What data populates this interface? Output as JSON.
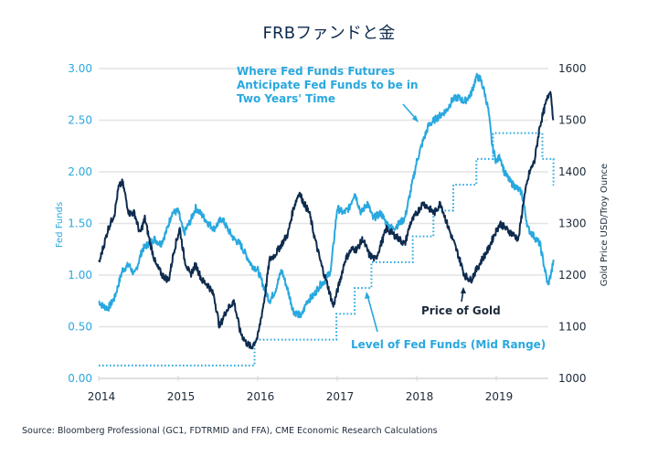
{
  "chart_data": {
    "type": "line",
    "title": "FRBファンドと金",
    "xlabel": "",
    "ylabel_left": "Fed Funds",
    "ylabel_right": "Gold Price USD/Troy Ounce",
    "x_range": [
      2014.0,
      2019.75
    ],
    "ylim_left": [
      0,
      3.0
    ],
    "ylim_right": [
      1000,
      1600
    ],
    "x_ticks": [
      "2014",
      "2015",
      "2016",
      "2017",
      "2018",
      "2019"
    ],
    "x_tick_values": [
      2014,
      2015,
      2016,
      2017,
      2018,
      2019
    ],
    "y_ticks_left": [
      "0.00",
      "0.50",
      "1.00",
      "1.50",
      "2.00",
      "2.50",
      "3.00"
    ],
    "y_tick_values_left": [
      0,
      0.5,
      1.0,
      1.5,
      2.0,
      2.5,
      3.0
    ],
    "y_ticks_right": [
      "1000",
      "1100",
      "1200",
      "1300",
      "1400",
      "1500",
      "1600"
    ],
    "y_tick_values_right": [
      1000,
      1100,
      1200,
      1300,
      1400,
      1500,
      1600
    ],
    "grid": true,
    "series": [
      {
        "name": "Where Fed Funds Futures Anticipate Fed Funds to be in Two Years' Time",
        "axis": "left",
        "style": "solid",
        "color": "#29a8df",
        "x": [
          2014.0,
          2014.05,
          2014.12,
          2014.2,
          2014.3,
          2014.38,
          2014.45,
          2014.55,
          2014.62,
          2014.7,
          2014.78,
          2014.85,
          2014.92,
          2015.0,
          2015.07,
          2015.15,
          2015.22,
          2015.3,
          2015.38,
          2015.45,
          2015.55,
          2015.62,
          2015.7,
          2015.78,
          2015.85,
          2015.92,
          2016.0,
          2016.07,
          2016.15,
          2016.22,
          2016.3,
          2016.38,
          2016.45,
          2016.55,
          2016.62,
          2016.7,
          2016.78,
          2016.85,
          2016.92,
          2017.0,
          2017.08,
          2017.15,
          2017.22,
          2017.3,
          2017.38,
          2017.45,
          2017.55,
          2017.62,
          2017.7,
          2017.78,
          2017.85,
          2017.92,
          2018.0,
          2018.08,
          2018.15,
          2018.22,
          2018.3,
          2018.38,
          2018.45,
          2018.52,
          2018.6,
          2018.68,
          2018.75,
          2018.8,
          2018.85,
          2018.9,
          2018.95,
          2019.0,
          2019.05,
          2019.1,
          2019.18,
          2019.25,
          2019.32,
          2019.4,
          2019.45,
          2019.5,
          2019.55,
          2019.6,
          2019.65,
          2019.7,
          2019.72
        ],
        "values": [
          0.75,
          0.7,
          0.68,
          0.78,
          1.05,
          1.1,
          1.0,
          1.25,
          1.3,
          1.35,
          1.3,
          1.42,
          1.6,
          1.62,
          1.4,
          1.52,
          1.65,
          1.58,
          1.5,
          1.45,
          1.55,
          1.45,
          1.35,
          1.3,
          1.2,
          1.1,
          1.05,
          0.9,
          0.75,
          0.85,
          1.05,
          0.85,
          0.65,
          0.6,
          0.75,
          0.8,
          0.9,
          0.95,
          1.05,
          1.65,
          1.6,
          1.65,
          1.8,
          1.6,
          1.7,
          1.55,
          1.6,
          1.5,
          1.45,
          1.5,
          1.55,
          1.8,
          2.1,
          2.3,
          2.45,
          2.5,
          2.55,
          2.6,
          2.7,
          2.72,
          2.68,
          2.75,
          2.92,
          2.9,
          2.78,
          2.6,
          2.25,
          2.1,
          2.15,
          2.0,
          1.9,
          1.85,
          1.8,
          1.45,
          1.4,
          1.35,
          1.3,
          1.1,
          0.9,
          1.05,
          1.15
        ]
      },
      {
        "name": "Price of Gold",
        "axis": "right",
        "style": "solid",
        "color": "#0e2b4e",
        "x": [
          2014.0,
          2014.05,
          2014.12,
          2014.2,
          2014.25,
          2014.3,
          2014.38,
          2014.45,
          2014.52,
          2014.58,
          2014.65,
          2014.72,
          2014.8,
          2014.88,
          2014.95,
          2015.02,
          2015.08,
          2015.15,
          2015.22,
          2015.3,
          2015.38,
          2015.45,
          2015.52,
          2015.6,
          2015.7,
          2015.78,
          2015.85,
          2015.92,
          2016.0,
          2016.08,
          2016.15,
          2016.22,
          2016.3,
          2016.38,
          2016.45,
          2016.52,
          2016.58,
          2016.65,
          2016.72,
          2016.8,
          2016.88,
          2016.95,
          2017.02,
          2017.1,
          2017.18,
          2017.25,
          2017.32,
          2017.4,
          2017.48,
          2017.55,
          2017.62,
          2017.7,
          2017.78,
          2017.85,
          2017.92,
          2018.0,
          2018.08,
          2018.15,
          2018.22,
          2018.3,
          2018.38,
          2018.45,
          2018.52,
          2018.6,
          2018.68,
          2018.75,
          2018.82,
          2018.9,
          2018.98,
          2019.05,
          2019.12,
          2019.2,
          2019.28,
          2019.35,
          2019.42,
          2019.48,
          2019.55,
          2019.62,
          2019.68,
          2019.72
        ],
        "values": [
          1220,
          1250,
          1290,
          1320,
          1370,
          1380,
          1320,
          1320,
          1280,
          1310,
          1260,
          1220,
          1200,
          1190,
          1250,
          1290,
          1230,
          1200,
          1220,
          1190,
          1180,
          1160,
          1100,
          1130,
          1150,
          1090,
          1070,
          1060,
          1080,
          1150,
          1230,
          1240,
          1260,
          1280,
          1330,
          1360,
          1340,
          1320,
          1270,
          1220,
          1180,
          1140,
          1180,
          1230,
          1250,
          1250,
          1270,
          1240,
          1230,
          1260,
          1290,
          1280,
          1270,
          1260,
          1300,
          1320,
          1340,
          1330,
          1320,
          1340,
          1300,
          1270,
          1240,
          1200,
          1190,
          1210,
          1230,
          1250,
          1280,
          1300,
          1290,
          1280,
          1270,
          1350,
          1400,
          1420,
          1490,
          1530,
          1560,
          1500
        ]
      },
      {
        "name": "Level of Fed Funds (Mid Range)",
        "axis": "left",
        "style": "dotted-step",
        "color": "#29a8df",
        "x": [
          2014.0,
          2015.96,
          2016.99,
          2017.22,
          2017.43,
          2017.95,
          2018.21,
          2018.46,
          2018.75,
          2018.96,
          2019.58,
          2019.72
        ],
        "values": [
          0.125,
          0.375,
          0.625,
          0.875,
          1.125,
          1.375,
          1.625,
          1.875,
          2.125,
          2.375,
          2.125,
          1.875
        ]
      }
    ],
    "annotations": [
      {
        "text_lines": [
          "Where Fed Funds Futures",
          "Anticipate Fed Funds to be in",
          "Two Years' Time"
        ],
        "color": "blue"
      },
      {
        "text_lines": [
          "Price of Gold"
        ],
        "color": "dark"
      },
      {
        "text_lines": [
          "Level of Fed Funds (Mid Range)"
        ],
        "color": "blue"
      }
    ]
  },
  "footer": {
    "source": "Source: Bloomberg Professional (GC1, FDTRMID and FFA), CME Economic Research Calculations"
  }
}
